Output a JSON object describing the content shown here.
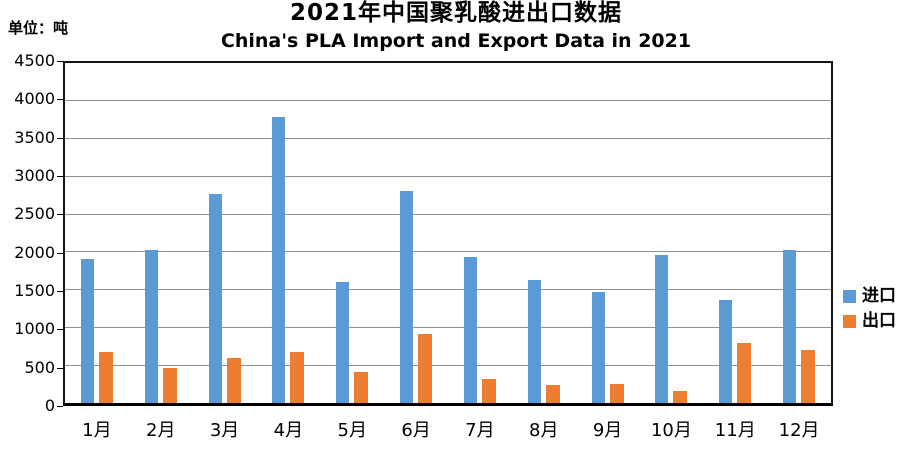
{
  "page": {
    "unit_label": "单位：吨",
    "title": "2021年中国聚乳酸进出口数据",
    "subtitle": "China's PLA Import and Export Data in 2021"
  },
  "chart_data": {
    "type": "bar",
    "title": "2021年中国聚乳酸进出口数据",
    "subtitle": "China's PLA Import and Export Data in 2021",
    "unit": "吨",
    "categories": [
      "1月",
      "2月",
      "3月",
      "4月",
      "5月",
      "6月",
      "7月",
      "8月",
      "9月",
      "10月",
      "11月",
      "12月"
    ],
    "series": [
      {
        "name": "进口",
        "color": "#5B9BD5",
        "values": [
          1900,
          2030,
          2760,
          3780,
          1600,
          2800,
          1930,
          1630,
          1470,
          1960,
          1360,
          2020
        ]
      },
      {
        "name": "出口",
        "color": "#ED7D31",
        "values": [
          680,
          460,
          590,
          680,
          410,
          920,
          320,
          240,
          250,
          160,
          790,
          700
        ]
      }
    ],
    "xlabel": "",
    "ylabel": "",
    "ylim": [
      0,
      4500
    ],
    "ytick_step": 500,
    "grid": "horizontal",
    "gridline_color": "#909090",
    "axis_color": "#000000",
    "legend_position": "right-middle"
  }
}
